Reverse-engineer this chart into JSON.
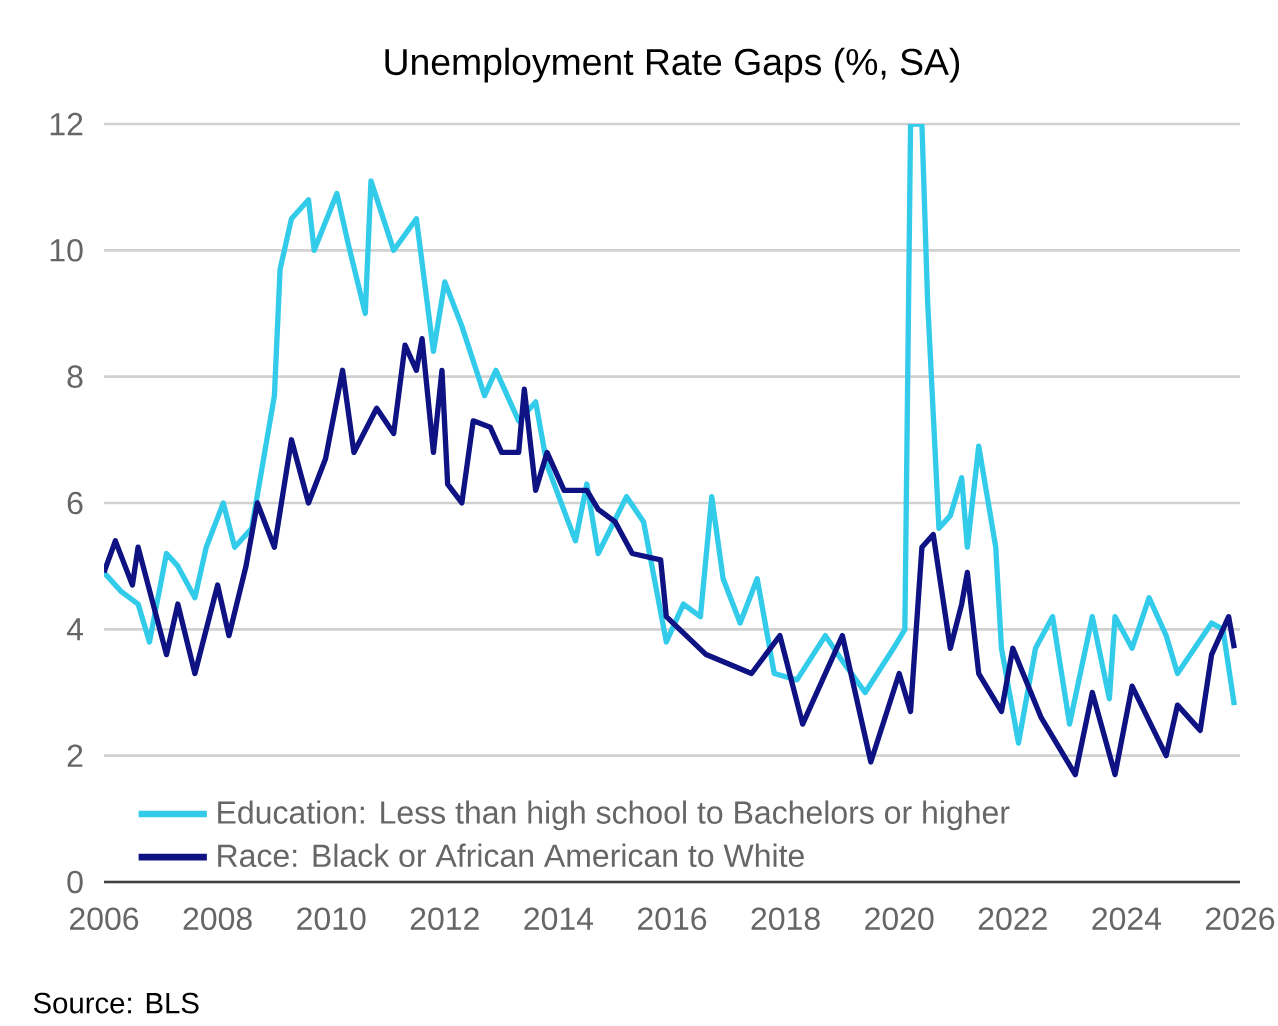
{
  "chart_data": {
    "type": "line",
    "title": "Unemployment Rate Gaps (%, SA)",
    "annotations": [
      "Source: BLS"
    ],
    "xlim": [
      2006,
      2026
    ],
    "xticks": [
      2006,
      2008,
      2010,
      2012,
      2014,
      2016,
      2018,
      2020,
      2022,
      2024,
      2026
    ],
    "ylim": [
      0,
      12
    ],
    "yticks": [
      0,
      2,
      4,
      6,
      8,
      10,
      12
    ],
    "grid": "y",
    "legend": "bottom left",
    "line_style": "solid",
    "series": [
      {
        "name": "Education: Less than high school to Bachelors or higher",
        "color": "#33cbea",
        "x": [
          2006.0,
          2006.3,
          2006.6,
          2006.8,
          2007.1,
          2007.3,
          2007.6,
          2007.8,
          2008.1,
          2008.3,
          2008.6,
          2009.0,
          2009.1,
          2009.3,
          2009.6,
          2009.7,
          2010.1,
          2010.3,
          2010.6,
          2010.7,
          2011.1,
          2011.5,
          2011.8,
          2012.0,
          2012.3,
          2012.7,
          2012.9,
          2013.3,
          2013.6,
          2013.8,
          2014.3,
          2014.5,
          2014.7,
          2015.2,
          2015.5,
          2015.9,
          2016.2,
          2016.5,
          2016.7,
          2016.9,
          2017.2,
          2017.5,
          2017.8,
          2018.2,
          2018.7,
          2019.0,
          2019.4,
          2019.9,
          2020.1,
          2020.2,
          2020.4,
          2020.5,
          2020.7,
          2020.9,
          2021.1,
          2021.2,
          2021.4,
          2021.7,
          2021.8,
          2022.1,
          2022.4,
          2022.7,
          2023.0,
          2023.4,
          2023.7,
          2023.8,
          2024.1,
          2024.4,
          2024.7,
          2024.9,
          2025.2,
          2025.5,
          2025.7,
          2025.9
        ],
        "values": [
          4.9,
          4.6,
          4.4,
          3.8,
          5.2,
          5.0,
          4.5,
          5.3,
          6.0,
          5.3,
          5.6,
          7.7,
          9.7,
          10.5,
          10.8,
          10.0,
          10.9,
          10.1,
          9.0,
          11.1,
          10.0,
          10.5,
          8.4,
          9.5,
          8.8,
          7.7,
          8.1,
          7.3,
          7.6,
          6.6,
          5.4,
          6.3,
          5.2,
          6.1,
          5.7,
          3.8,
          4.4,
          4.2,
          6.1,
          4.8,
          4.1,
          4.8,
          3.3,
          3.2,
          3.9,
          3.5,
          3.0,
          3.7,
          4.0,
          12.0,
          12.0,
          9.2,
          5.6,
          5.8,
          6.4,
          5.3,
          6.9,
          5.3,
          3.7,
          2.2,
          3.7,
          4.2,
          2.5,
          4.2,
          2.9,
          4.2,
          3.7,
          4.5,
          3.9,
          3.3,
          3.7,
          4.1,
          4.0,
          2.8
        ]
      },
      {
        "name": "Race: Black or African American to White",
        "color": "#0e1283",
        "x": [
          2006.0,
          2006.2,
          2006.5,
          2006.6,
          2007.1,
          2007.3,
          2007.6,
          2008.0,
          2008.2,
          2008.5,
          2008.7,
          2009.0,
          2009.3,
          2009.6,
          2009.9,
          2010.2,
          2010.4,
          2010.8,
          2011.1,
          2011.3,
          2011.5,
          2011.6,
          2011.8,
          2011.95,
          2012.05,
          2012.3,
          2012.5,
          2012.8,
          2013.0,
          2013.3,
          2013.4,
          2013.6,
          2013.8,
          2014.1,
          2014.5,
          2014.7,
          2015.0,
          2015.3,
          2015.8,
          2015.9,
          2016.6,
          2017.4,
          2017.9,
          2018.3,
          2019.0,
          2019.5,
          2020.0,
          2020.2,
          2020.4,
          2020.6,
          2020.9,
          2021.1,
          2021.2,
          2021.4,
          2021.8,
          2022.0,
          2022.5,
          2023.1,
          2023.4,
          2023.8,
          2024.1,
          2024.7,
          2024.9,
          2025.3,
          2025.5,
          2025.8,
          2025.9
        ],
        "values": [
          4.9,
          5.4,
          4.7,
          5.3,
          3.6,
          4.4,
          3.3,
          4.7,
          3.9,
          5.0,
          6.0,
          5.3,
          7.0,
          6.0,
          6.7,
          8.1,
          6.8,
          7.5,
          7.1,
          8.5,
          8.1,
          8.6,
          6.8,
          8.1,
          6.3,
          6.0,
          7.3,
          7.2,
          6.8,
          6.8,
          7.8,
          6.2,
          6.8,
          6.2,
          6.2,
          5.9,
          5.7,
          5.2,
          5.1,
          4.2,
          3.6,
          3.3,
          3.9,
          2.5,
          3.9,
          1.9,
          3.3,
          2.7,
          5.3,
          5.5,
          3.7,
          4.4,
          4.9,
          3.3,
          2.7,
          3.7,
          2.6,
          1.7,
          3.0,
          1.7,
          3.1,
          2.0,
          2.8,
          2.4,
          3.6,
          4.2,
          3.7
        ]
      }
    ]
  }
}
